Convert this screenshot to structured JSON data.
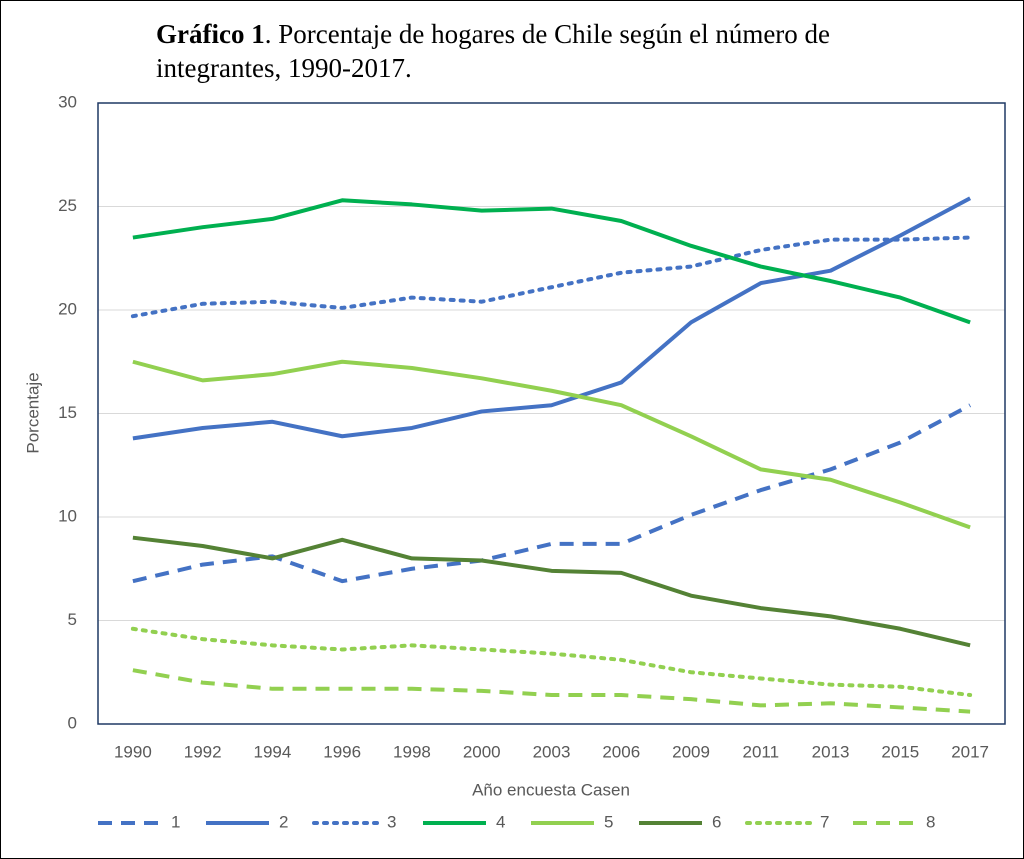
{
  "chart_data": {
    "type": "line",
    "title_prefix": "Gráfico 1",
    "title": ". Porcentaje de hogares de Chile según el número de integrantes, 1990-2017.",
    "y_label": "Porcentaje",
    "x_label": "Año encuesta Casen",
    "categories": [
      "1990",
      "1992",
      "1994",
      "1996",
      "1998",
      "2000",
      "2003",
      "2006",
      "2009",
      "2011",
      "2013",
      "2015",
      "2017"
    ],
    "ylim": [
      0,
      30
    ],
    "yticks": [
      0,
      5,
      10,
      15,
      20,
      25,
      30
    ],
    "grid": true,
    "series": [
      {
        "name": "1",
        "color": "#4472c4",
        "style": "dashed",
        "values": [
          6.9,
          7.7,
          8.1,
          6.9,
          7.5,
          7.9,
          8.7,
          8.7,
          10.1,
          11.3,
          12.3,
          13.6,
          15.4
        ]
      },
      {
        "name": "2",
        "color": "#4472c4",
        "style": "solid",
        "values": [
          13.8,
          14.3,
          14.6,
          13.9,
          14.3,
          15.1,
          15.4,
          16.5,
          19.4,
          21.3,
          21.9,
          23.6,
          25.4
        ]
      },
      {
        "name": "3",
        "color": "#4472c4",
        "style": "dotted",
        "values": [
          19.7,
          20.3,
          20.4,
          20.1,
          20.6,
          20.4,
          21.1,
          21.8,
          22.1,
          22.9,
          23.4,
          23.4,
          23.5
        ]
      },
      {
        "name": "4",
        "color": "#00b050",
        "style": "solid",
        "values": [
          23.5,
          24.0,
          24.4,
          25.3,
          25.1,
          24.8,
          24.9,
          24.3,
          23.1,
          22.1,
          21.4,
          20.6,
          19.4
        ]
      },
      {
        "name": "5",
        "color": "#92d050",
        "style": "solid",
        "values": [
          17.5,
          16.6,
          16.9,
          17.5,
          17.2,
          16.7,
          16.1,
          15.4,
          13.9,
          12.3,
          11.8,
          10.7,
          9.5
        ]
      },
      {
        "name": "6",
        "color": "#548235",
        "style": "solid",
        "values": [
          9.0,
          8.6,
          8.0,
          8.9,
          8.0,
          7.9,
          7.4,
          7.3,
          6.2,
          5.6,
          5.2,
          4.6,
          3.8
        ]
      },
      {
        "name": "7",
        "color": "#92d050",
        "style": "dotted",
        "values": [
          4.6,
          4.1,
          3.8,
          3.6,
          3.8,
          3.6,
          3.4,
          3.1,
          2.5,
          2.2,
          1.9,
          1.8,
          1.4
        ]
      },
      {
        "name": "8",
        "color": "#92d050",
        "style": "dashed",
        "values": [
          2.6,
          2.0,
          1.7,
          1.7,
          1.7,
          1.6,
          1.4,
          1.4,
          1.2,
          0.9,
          1.0,
          0.8,
          0.6
        ]
      }
    ]
  }
}
